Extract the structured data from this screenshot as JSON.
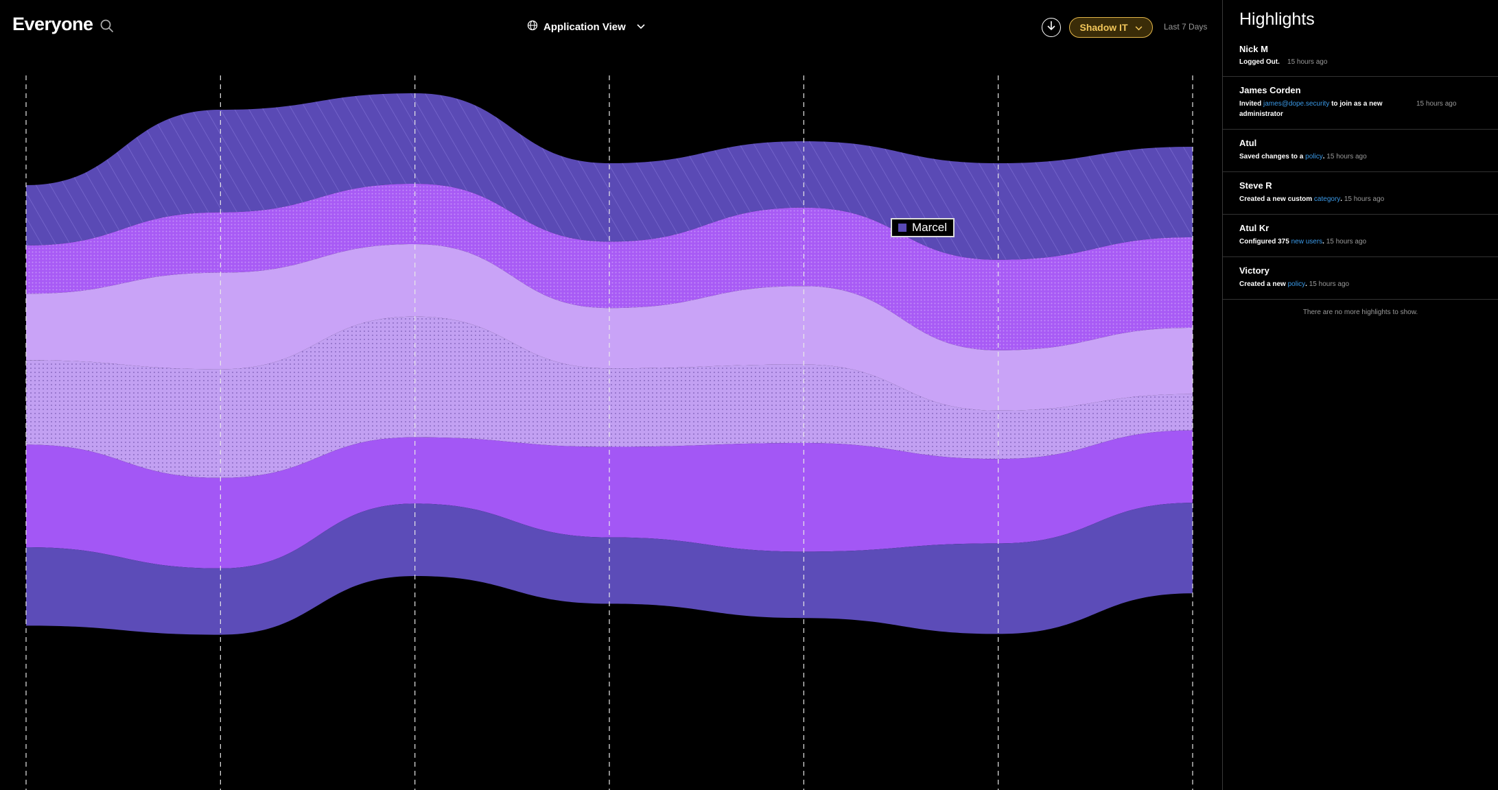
{
  "header": {
    "title": "Everyone",
    "view_label": "Application View",
    "filter_label": "Shadow IT",
    "range_label": "Last 7 Days"
  },
  "icons": {
    "search": "search-icon",
    "globe": "globe-icon",
    "chevron": "chevron-down-icon",
    "download": "download-icon"
  },
  "colors": {
    "accent_yellow": "#f2c65a",
    "series": [
      "#5a4ab5",
      "#a85bf5",
      "#c9a3f7",
      "#c2a0f2",
      "#a357f5",
      "#5c4cb8"
    ],
    "link": "#3b9ae8"
  },
  "chart_data": {
    "type": "area",
    "subtype": "streamgraph",
    "x_count": 7,
    "grid": "vertical dashed",
    "series": [
      {
        "name": "Marcel",
        "color": "#5a4ab5",
        "pattern": "diagonal-stripes",
        "values": [
          0.1,
          0.17,
          0.15,
          0.13,
          0.11,
          0.16,
          0.15
        ]
      },
      {
        "pattern": "dots",
        "color": "#a85bf5",
        "values": [
          0.08,
          0.1,
          0.1,
          0.11,
          0.13,
          0.15,
          0.15
        ]
      },
      {
        "pattern": "solid",
        "color": "#c9a3f7",
        "values": [
          0.11,
          0.16,
          0.12,
          0.1,
          0.13,
          0.1,
          0.11
        ]
      },
      {
        "pattern": "fine-dots",
        "color": "#c2a0f2",
        "values": [
          0.14,
          0.18,
          0.2,
          0.13,
          0.13,
          0.08,
          0.06
        ]
      },
      {
        "pattern": "solid",
        "color": "#a357f5",
        "values": [
          0.17,
          0.15,
          0.11,
          0.15,
          0.18,
          0.14,
          0.12
        ]
      },
      {
        "pattern": "solid",
        "color": "#5c4cb8",
        "values": [
          0.13,
          0.11,
          0.12,
          0.11,
          0.11,
          0.15,
          0.15
        ]
      }
    ],
    "tooltip": {
      "series": "Marcel"
    }
  },
  "sidebar": {
    "title": "Highlights",
    "items": [
      {
        "name": "Nick M",
        "pre": "Logged Out.",
        "link": "",
        "post": "",
        "time": "15 hours ago"
      },
      {
        "name": "James Corden",
        "pre": "Invited ",
        "link": "james@dope.security",
        "post": " to join as a new",
        "post2": "administrator",
        "time": "15 hours ago"
      },
      {
        "name": "Atul",
        "pre": "Saved changes to a ",
        "link": "policy",
        "post": ".",
        "time": "15 hours ago"
      },
      {
        "name": "Steve R",
        "pre": "Created a new custom ",
        "link": "category",
        "post": ".",
        "time": "15 hours ago"
      },
      {
        "name": "Atul Kr",
        "pre": "Configured 375 ",
        "link": "new users",
        "post": ".",
        "time": "15 hours ago"
      },
      {
        "name": "Victory",
        "pre": "Created a new ",
        "link": "policy",
        "post": ".",
        "time": "15 hours ago"
      }
    ],
    "empty_message": "There are no more highlights to show."
  }
}
